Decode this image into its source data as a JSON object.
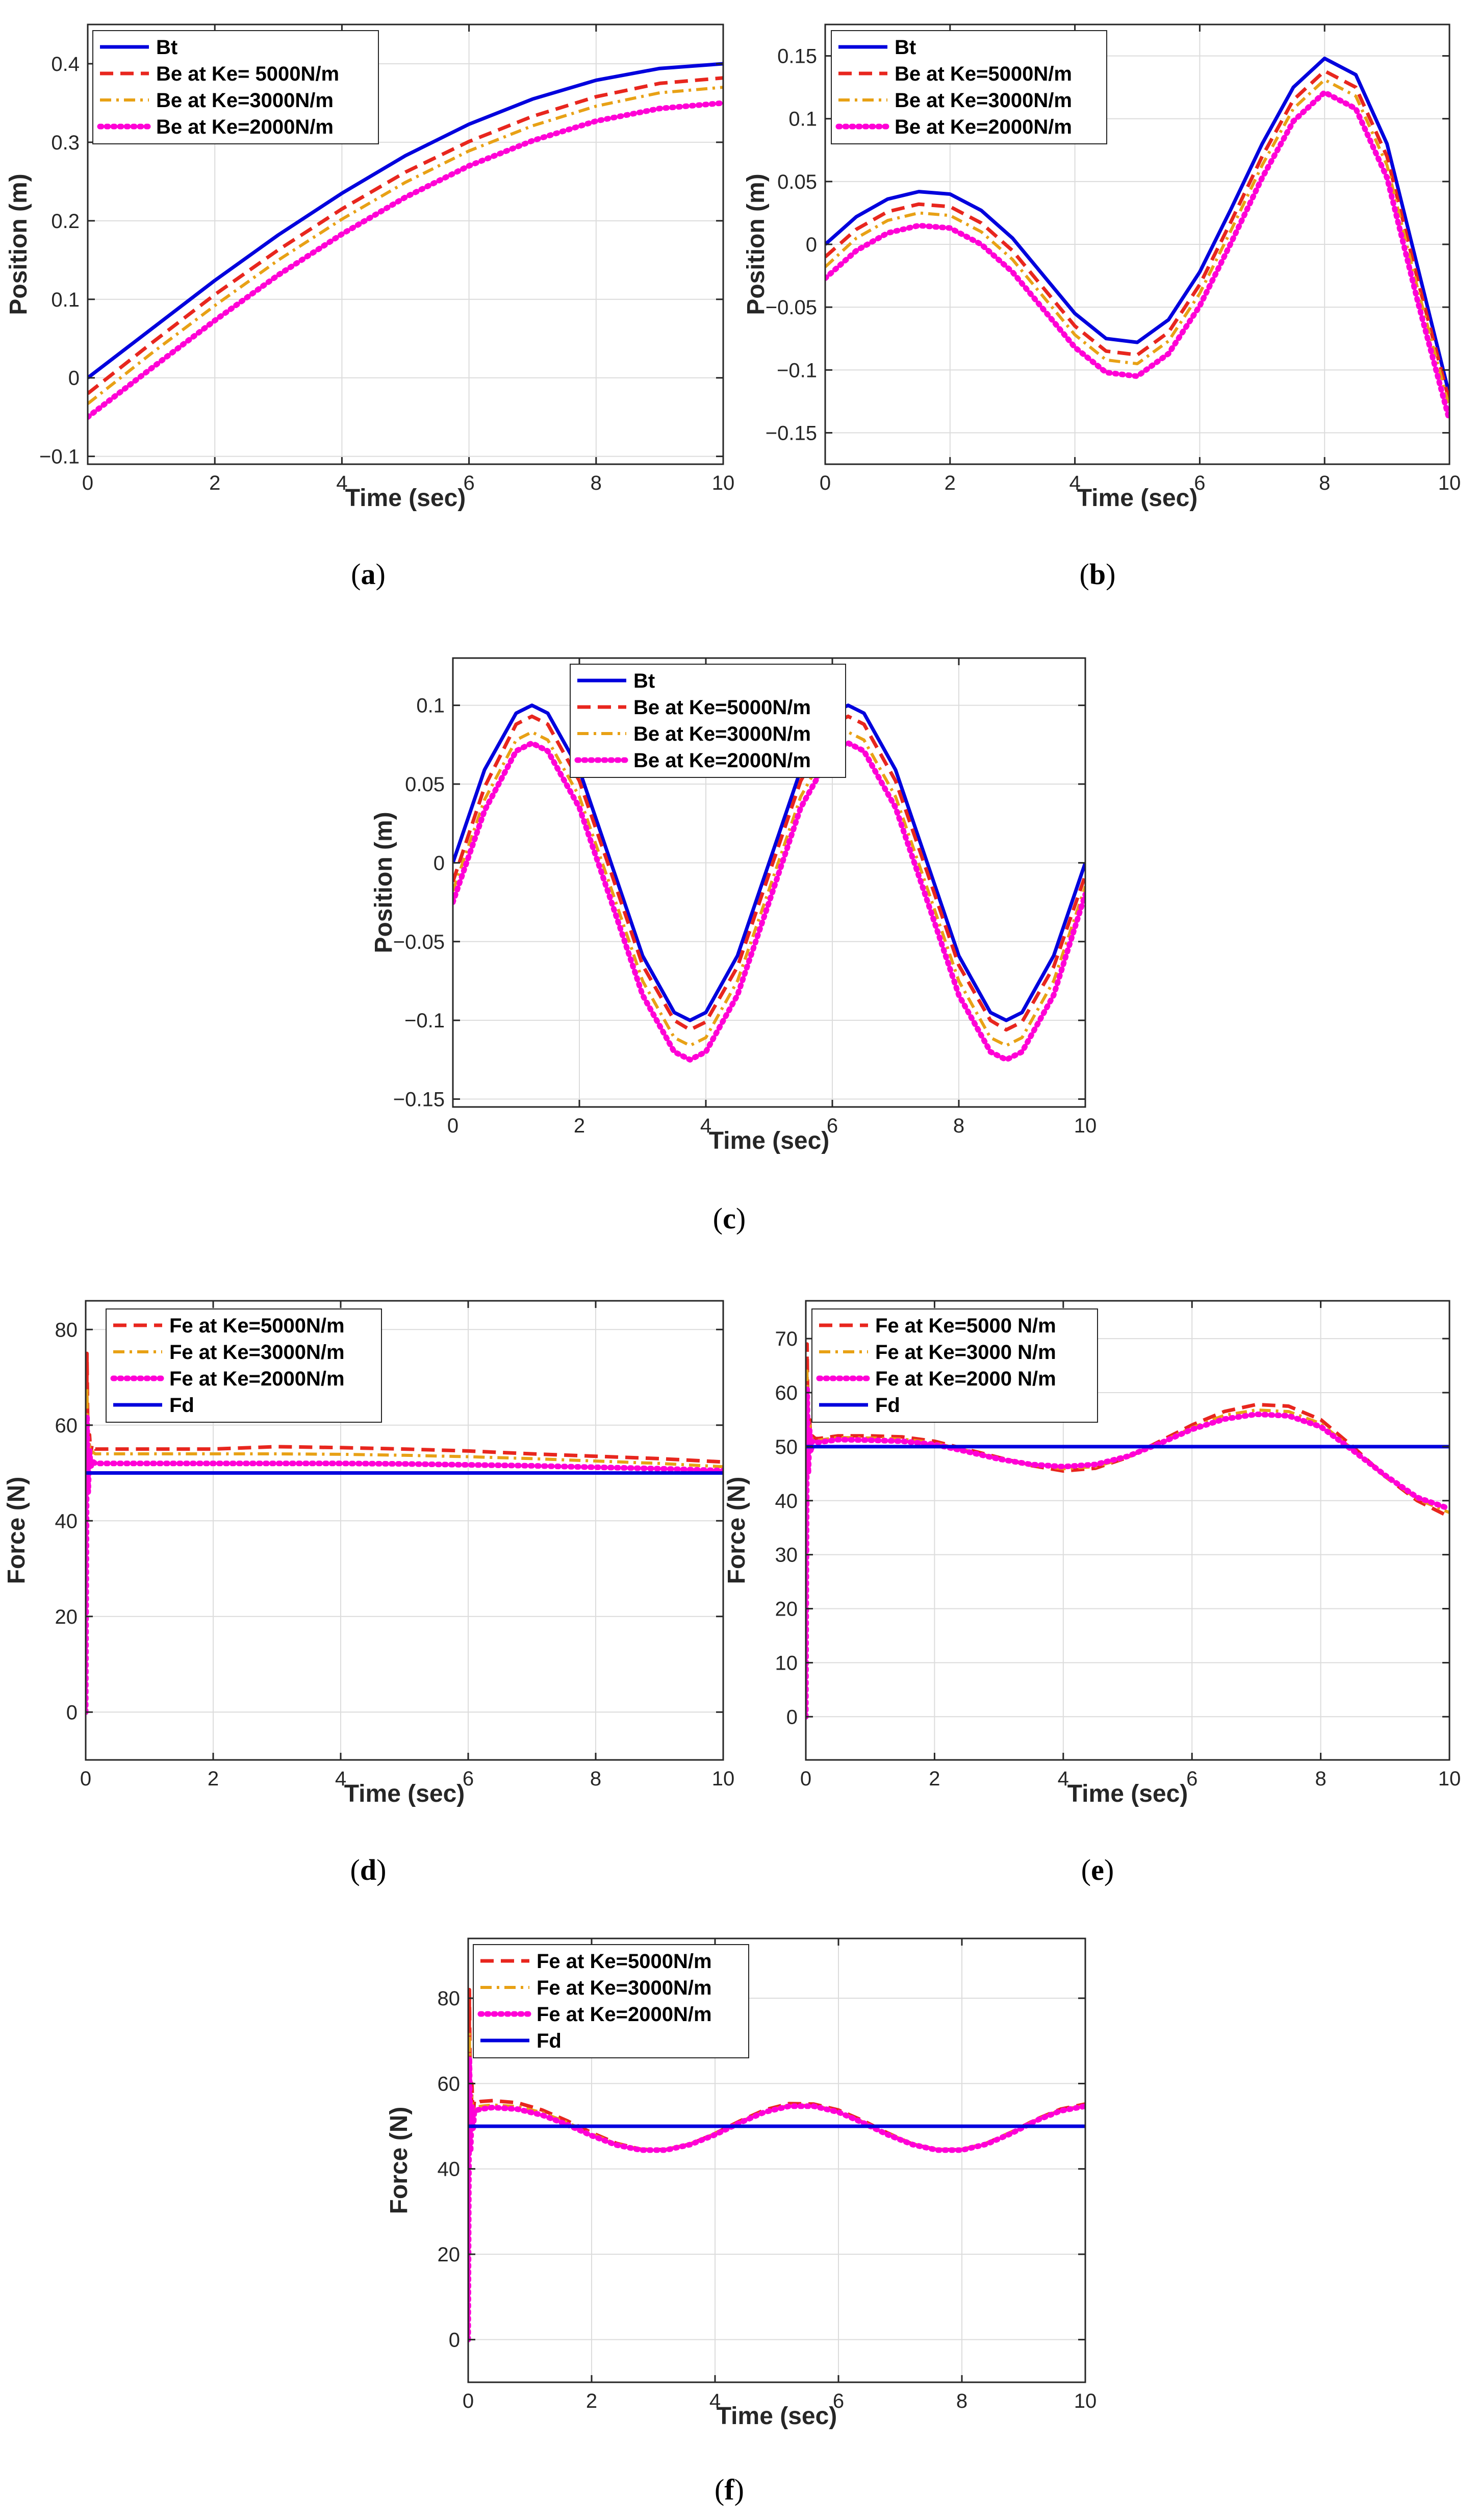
{
  "chart_data": [
    {
      "id": "a",
      "type": "line",
      "caption_letter": "a",
      "xlabel": "Time (sec)",
      "ylabel": "Position (m)",
      "xlim": [
        0,
        10
      ],
      "ylim": [
        -0.11,
        0.45
      ],
      "xticks": [
        0,
        2,
        4,
        6,
        8,
        10
      ],
      "xtick_labels": [
        "0",
        "2",
        "4",
        "6",
        "8",
        "10"
      ],
      "yticks": [
        -0.1,
        0,
        0.1,
        0.2,
        0.3,
        0.4
      ],
      "ytick_labels": [
        "-0.1",
        "0",
        "0.1",
        "0.2",
        "0.3",
        "0.4"
      ],
      "grid": true,
      "legend_position": "top-left",
      "x": [
        0,
        1,
        2,
        3,
        4,
        5,
        6,
        7,
        8,
        9,
        10
      ],
      "series": [
        {
          "name": "Bt",
          "color": "#0000dd",
          "style": "solid",
          "values": [
            0,
            0.062,
            0.124,
            0.182,
            0.235,
            0.283,
            0.323,
            0.355,
            0.379,
            0.394,
            0.4
          ]
        },
        {
          "name": "Be at Ke= 5000N/m",
          "color": "#e8261e",
          "style": "dash",
          "values": [
            -0.02,
            0.044,
            0.106,
            0.163,
            0.215,
            0.262,
            0.301,
            0.333,
            0.358,
            0.375,
            0.382
          ]
        },
        {
          "name": "Be at Ke=3000N/m",
          "color": "#e8a115",
          "style": "dashdot",
          "values": [
            -0.033,
            0.031,
            0.092,
            0.15,
            0.202,
            0.249,
            0.289,
            0.321,
            0.346,
            0.363,
            0.37
          ]
        },
        {
          "name": "Be at Ke=2000N/m",
          "color": "#ff00d6",
          "style": "dot",
          "values": [
            -0.05,
            0.012,
            0.073,
            0.131,
            0.183,
            0.23,
            0.27,
            0.302,
            0.327,
            0.343,
            0.35
          ]
        }
      ]
    },
    {
      "id": "b",
      "type": "line",
      "caption_letter": "b",
      "xlabel": "Time (sec)",
      "ylabel": "Position (m)",
      "xlim": [
        0,
        10
      ],
      "ylim": [
        -0.175,
        0.175
      ],
      "xticks": [
        0,
        2,
        4,
        6,
        8,
        10
      ],
      "xtick_labels": [
        "0",
        "2",
        "4",
        "6",
        "8",
        "10"
      ],
      "yticks": [
        -0.15,
        -0.1,
        -0.05,
        0,
        0.05,
        0.1,
        0.15
      ],
      "ytick_labels": [
        "-0.15",
        "-0.1",
        "-0.05",
        "0",
        "0.05",
        "0.1",
        "0.15"
      ],
      "grid": true,
      "legend_position": "top-left",
      "x": [
        0,
        0.5,
        1,
        1.5,
        2,
        2.5,
        3,
        3.5,
        4,
        4.5,
        5,
        5.5,
        6,
        6.5,
        7,
        7.5,
        8,
        8.5,
        9,
        9.5,
        10
      ],
      "series": [
        {
          "name": "Bt",
          "color": "#0000dd",
          "style": "solid",
          "values": [
            0,
            0.022,
            0.036,
            0.042,
            0.04,
            0.027,
            0.005,
            -0.025,
            -0.055,
            -0.075,
            -0.078,
            -0.06,
            -0.022,
            0.028,
            0.08,
            0.125,
            0.148,
            0.135,
            0.08,
            -0.02,
            -0.12
          ]
        },
        {
          "name": "Be at Ke=5000N/m",
          "color": "#e8261e",
          "style": "dash",
          "values": [
            -0.01,
            0.012,
            0.026,
            0.032,
            0.03,
            0.017,
            -0.005,
            -0.035,
            -0.065,
            -0.085,
            -0.088,
            -0.07,
            -0.032,
            0.018,
            0.07,
            0.115,
            0.138,
            0.125,
            0.07,
            -0.03,
            -0.125
          ]
        },
        {
          "name": "Be at Ke=3000N/m",
          "color": "#e8a115",
          "style": "dashdot",
          "values": [
            -0.018,
            0.005,
            0.019,
            0.025,
            0.023,
            0.01,
            -0.012,
            -0.042,
            -0.072,
            -0.092,
            -0.095,
            -0.077,
            -0.039,
            0.011,
            0.063,
            0.108,
            0.131,
            0.118,
            0.063,
            -0.037,
            -0.13
          ]
        },
        {
          "name": "Be at Ke=2000N/m",
          "color": "#ff00d6",
          "style": "dot",
          "values": [
            -0.027,
            -0.005,
            0.009,
            0.015,
            0.013,
            0.0,
            -0.022,
            -0.052,
            -0.082,
            -0.102,
            -0.105,
            -0.087,
            -0.049,
            0.001,
            0.053,
            0.098,
            0.121,
            0.108,
            0.053,
            -0.047,
            -0.14
          ]
        }
      ]
    },
    {
      "id": "c",
      "type": "line",
      "caption_letter": "c",
      "xlabel": "Time (sec)",
      "ylabel": "Position (m)",
      "xlim": [
        0,
        10
      ],
      "ylim": [
        -0.155,
        0.13
      ],
      "xticks": [
        0,
        2,
        4,
        6,
        8,
        10
      ],
      "xtick_labels": [
        "0",
        "2",
        "4",
        "6",
        "8",
        "10"
      ],
      "yticks": [
        -0.15,
        -0.1,
        -0.05,
        0,
        0.05,
        0.1
      ],
      "ytick_labels": [
        "-0.15",
        "-0.1",
        "-0.05",
        "0",
        "0.05",
        "0.1"
      ],
      "grid": true,
      "legend_position": "top-center",
      "x": [
        0,
        0.5,
        1,
        1.25,
        1.5,
        2,
        2.5,
        3,
        3.5,
        3.75,
        4,
        4.5,
        5,
        5.5,
        6,
        6.25,
        6.5,
        7,
        7.5,
        8,
        8.5,
        8.75,
        9,
        9.5,
        10
      ],
      "series": [
        {
          "name": "Bt",
          "color": "#0000dd",
          "style": "solid",
          "values": [
            0,
            0.059,
            0.095,
            0.1,
            0.095,
            0.059,
            0,
            -0.059,
            -0.095,
            -0.1,
            -0.095,
            -0.059,
            0,
            0.059,
            0.095,
            0.1,
            0.095,
            0.059,
            0,
            -0.059,
            -0.095,
            -0.1,
            -0.095,
            -0.059,
            0
          ]
        },
        {
          "name": "Be at Ke=5000N/m",
          "color": "#e8261e",
          "style": "dash",
          "values": [
            -0.012,
            0.048,
            0.088,
            0.093,
            0.088,
            0.052,
            -0.006,
            -0.065,
            -0.1,
            -0.106,
            -0.101,
            -0.066,
            -0.007,
            0.052,
            0.088,
            0.093,
            0.088,
            0.052,
            -0.006,
            -0.065,
            -0.1,
            -0.106,
            -0.101,
            -0.066,
            -0.008
          ]
        },
        {
          "name": "Be at Ke=3000N/m",
          "color": "#e8a115",
          "style": "dashdot",
          "values": [
            -0.018,
            0.04,
            0.078,
            0.083,
            0.078,
            0.042,
            -0.016,
            -0.075,
            -0.111,
            -0.116,
            -0.111,
            -0.075,
            -0.017,
            0.042,
            0.078,
            0.083,
            0.078,
            0.042,
            -0.016,
            -0.075,
            -0.111,
            -0.116,
            -0.111,
            -0.075,
            -0.015
          ]
        },
        {
          "name": "Be at Ke=2000N/m",
          "color": "#ff00d6",
          "style": "dot",
          "values": [
            -0.025,
            0.033,
            0.071,
            0.076,
            0.071,
            0.035,
            -0.024,
            -0.084,
            -0.12,
            -0.125,
            -0.12,
            -0.084,
            -0.025,
            0.035,
            0.071,
            0.076,
            0.071,
            0.035,
            -0.024,
            -0.084,
            -0.12,
            -0.125,
            -0.12,
            -0.084,
            -0.02
          ]
        }
      ]
    },
    {
      "id": "d",
      "type": "line",
      "caption_letter": "d",
      "xlabel": "Time (sec)",
      "ylabel": "Force (N)",
      "xlim": [
        0,
        10
      ],
      "ylim": [
        -10,
        86
      ],
      "xticks": [
        0,
        2,
        4,
        6,
        8,
        10
      ],
      "xtick_labels": [
        "0",
        "2",
        "4",
        "6",
        "8",
        "10"
      ],
      "yticks": [
        0,
        20,
        40,
        60,
        80
      ],
      "ytick_labels": [
        "0",
        "20",
        "40",
        "60",
        "80"
      ],
      "grid": true,
      "legend_position": "top-left",
      "x": [
        0,
        0.02,
        0.04,
        0.06,
        0.08,
        0.1,
        0.15,
        0.2,
        0.5,
        1,
        2,
        3,
        4,
        5,
        6,
        7,
        8,
        9,
        10
      ],
      "series": [
        {
          "name": "Fe at Ke=5000N/m",
          "color": "#e8261e",
          "style": "dash",
          "values": [
            0,
            75,
            50,
            58,
            54,
            56,
            55,
            55,
            55,
            55,
            55,
            55.5,
            55.3,
            55,
            54.6,
            54,
            53.5,
            53,
            52.3
          ]
        },
        {
          "name": "Fe at Ke=3000N/m",
          "color": "#e8a115",
          "style": "dashdot",
          "values": [
            0,
            68,
            48,
            56,
            53,
            54.5,
            54,
            54,
            54,
            54,
            54,
            54,
            53.9,
            53.7,
            53.4,
            53,
            52.5,
            52,
            51.3
          ]
        },
        {
          "name": "Fe at Ke=2000N/m",
          "color": "#ff00d6",
          "style": "dot",
          "values": [
            0,
            62,
            46,
            55,
            51,
            52.5,
            52,
            52,
            52,
            52,
            52,
            52,
            52,
            51.9,
            51.7,
            51.5,
            51.2,
            50.9,
            50.5
          ]
        },
        {
          "name": "Fd",
          "color": "#0000dd",
          "style": "solid",
          "values": [
            50,
            50,
            50,
            50,
            50,
            50,
            50,
            50,
            50,
            50,
            50,
            50,
            50,
            50,
            50,
            50,
            50,
            50,
            50
          ]
        }
      ]
    },
    {
      "id": "e",
      "type": "line",
      "caption_letter": "e",
      "xlabel": "Time (sec)",
      "ylabel": "Force (N)",
      "xlim": [
        0,
        10
      ],
      "ylim": [
        -8,
        77
      ],
      "xticks": [
        0,
        2,
        4,
        6,
        8,
        10
      ],
      "xtick_labels": [
        "0",
        "2",
        "4",
        "6",
        "8",
        "10"
      ],
      "yticks": [
        0,
        10,
        20,
        30,
        40,
        50,
        60,
        70
      ],
      "ytick_labels": [
        "0",
        "10",
        "20",
        "30",
        "40",
        "50",
        "60",
        "70"
      ],
      "grid": true,
      "legend_position": "top-left",
      "x": [
        0,
        0.02,
        0.04,
        0.06,
        0.08,
        0.1,
        0.15,
        0.2,
        0.5,
        1,
        1.5,
        2,
        2.5,
        3,
        3.5,
        4,
        4.5,
        5,
        5.5,
        6,
        6.5,
        7,
        7.5,
        8,
        8.5,
        9,
        9.5,
        10
      ],
      "series": [
        {
          "name": "Fe at Ke=5000 N/m",
          "color": "#e8261e",
          "style": "dash",
          "values": [
            0,
            69,
            47,
            55,
            50,
            52,
            51.5,
            51.5,
            52,
            52,
            51.8,
            51,
            49.5,
            48,
            46.5,
            45.5,
            46,
            48,
            51,
            54,
            56.5,
            57.8,
            57.5,
            55,
            50,
            44.5,
            40,
            37
          ]
        },
        {
          "name": "Fe at Ke=3000 N/m",
          "color": "#e8a115",
          "style": "dashdot",
          "values": [
            0,
            64,
            46,
            54,
            49.5,
            51.5,
            51.2,
            51.2,
            51.7,
            51.6,
            51.4,
            50.7,
            49.3,
            47.8,
            46.6,
            45.9,
            46.3,
            48,
            50.8,
            53.5,
            55.8,
            56.8,
            56.5,
            54.3,
            49.5,
            44.5,
            40.3,
            37.8
          ]
        },
        {
          "name": "Fe at Ke=2000 N/m",
          "color": "#ff00d6",
          "style": "dot",
          "values": [
            0,
            61,
            45,
            53,
            49,
            51,
            50.8,
            50.8,
            51.3,
            51.2,
            51,
            50.4,
            49.1,
            47.7,
            46.7,
            46.3,
            46.7,
            48.2,
            50.6,
            53.2,
            55.1,
            56,
            55.7,
            53.7,
            49.3,
            44.7,
            40.6,
            38.5
          ]
        },
        {
          "name": "Fd",
          "color": "#0000dd",
          "style": "solid",
          "values": [
            50,
            50,
            50,
            50,
            50,
            50,
            50,
            50,
            50,
            50,
            50,
            50,
            50,
            50,
            50,
            50,
            50,
            50,
            50,
            50,
            50,
            50,
            50,
            50,
            50,
            50,
            50,
            50
          ]
        }
      ]
    },
    {
      "id": "f",
      "type": "line",
      "caption_letter": "f",
      "xlabel": "Time (sec)",
      "ylabel": "Force (N)",
      "xlim": [
        0,
        10
      ],
      "ylim": [
        -10,
        94
      ],
      "xticks": [
        0,
        2,
        4,
        6,
        8,
        10
      ],
      "xtick_labels": [
        "0",
        "2",
        "4",
        "6",
        "8",
        "10"
      ],
      "yticks": [
        0,
        20,
        40,
        60,
        80
      ],
      "ytick_labels": [
        "0",
        "20",
        "40",
        "60",
        "80"
      ],
      "grid": true,
      "legend_position": "top-left",
      "x": [
        0,
        0.02,
        0.04,
        0.06,
        0.08,
        0.1,
        0.15,
        0.2,
        0.4,
        0.8,
        1.2,
        1.6,
        2,
        2.4,
        2.8,
        3.2,
        3.6,
        4,
        4.4,
        4.8,
        5.2,
        5.6,
        6,
        6.4,
        6.8,
        7.2,
        7.6,
        8,
        8.4,
        8.8,
        9.2,
        9.6,
        10
      ],
      "series": [
        {
          "name": "Fe at Ke=5000N/m",
          "color": "#e8261e",
          "style": "dash",
          "values": [
            0,
            82,
            47,
            60,
            52,
            56,
            55.5,
            55.8,
            56,
            55.5,
            53.8,
            51.3,
            48.5,
            46,
            44.6,
            44.5,
            45.8,
            48.3,
            51.2,
            53.8,
            55.3,
            55.2,
            53.8,
            51.3,
            48.4,
            45.8,
            44.5,
            44.5,
            46,
            48.6,
            51.6,
            54,
            55.2
          ]
        },
        {
          "name": "Fe at Ke=3000N/m",
          "color": "#e8a115",
          "style": "dashdot",
          "values": [
            0,
            72,
            45,
            57,
            50,
            54.5,
            54.5,
            54.7,
            55,
            54.6,
            53.2,
            50.9,
            48.2,
            45.9,
            44.6,
            44.6,
            45.9,
            48.3,
            51,
            53.5,
            54.9,
            54.9,
            53.5,
            51,
            48.3,
            45.9,
            44.6,
            44.6,
            46,
            48.6,
            51.5,
            53.8,
            54.9
          ]
        },
        {
          "name": "Fe at Ke=2000N/m",
          "color": "#ff00d6",
          "style": "dot",
          "values": [
            0,
            66,
            44,
            55,
            49,
            53.5,
            53.8,
            54,
            54.4,
            54,
            52.6,
            50.4,
            47.8,
            45.6,
            44.4,
            44.4,
            45.7,
            48,
            50.8,
            53.3,
            54.7,
            54.7,
            53.3,
            50.8,
            48,
            45.7,
            44.4,
            44.4,
            45.8,
            48.3,
            51.3,
            53.6,
            54.7
          ]
        },
        {
          "name": "Fd",
          "color": "#0000dd",
          "style": "solid",
          "values": [
            50,
            50,
            50,
            50,
            50,
            50,
            50,
            50,
            50,
            50,
            50,
            50,
            50,
            50,
            50,
            50,
            50,
            50,
            50,
            50,
            50,
            50,
            50,
            50,
            50,
            50,
            50,
            50,
            50,
            50,
            50,
            50,
            50
          ]
        }
      ]
    }
  ]
}
